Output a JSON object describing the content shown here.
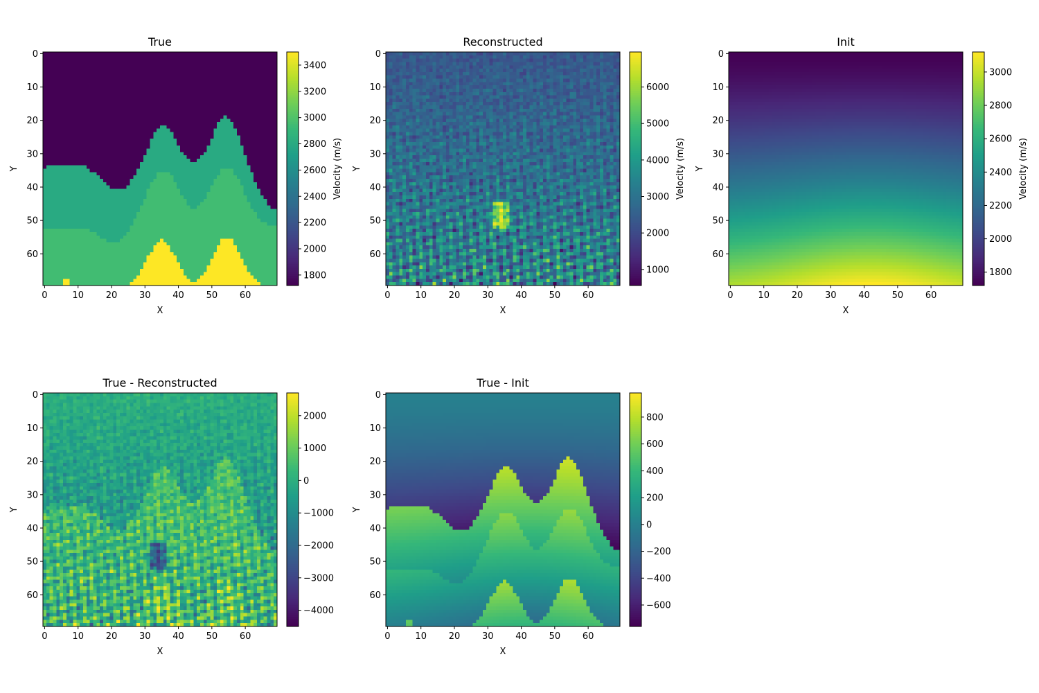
{
  "chart_data": [
    {
      "type": "heatmap",
      "title": "True",
      "xlabel": "X",
      "ylabel": "Y",
      "colorbar_label": "Velocity (m/s)",
      "xticks": [
        0,
        10,
        20,
        30,
        40,
        50,
        60
      ],
      "yticks": [
        0,
        10,
        20,
        30,
        40,
        50,
        60
      ],
      "colorbar_ticks": [
        1800,
        2000,
        2200,
        2400,
        2600,
        2800,
        3000,
        3200,
        3400
      ],
      "vmin": 1720,
      "vmax": 3500,
      "colormap": "viridis",
      "grid": "70x70",
      "field": "true_layered_model"
    },
    {
      "type": "heatmap",
      "title": "Reconstructed",
      "xlabel": "X",
      "ylabel": "Y",
      "colorbar_label": "Velocity (m/s)",
      "xticks": [
        0,
        10,
        20,
        30,
        40,
        50,
        60
      ],
      "yticks": [
        0,
        10,
        20,
        30,
        40,
        50,
        60
      ],
      "colorbar_ticks": [
        1000,
        2000,
        3000,
        4000,
        5000,
        6000
      ],
      "vmin": 560,
      "vmax": 6960,
      "colormap": "viridis",
      "grid": "70x70",
      "field": "noisy_reconstruction"
    },
    {
      "type": "heatmap",
      "title": "Init",
      "xlabel": "X",
      "ylabel": "Y",
      "colorbar_label": "Velocity (m/s)",
      "xticks": [
        0,
        10,
        20,
        30,
        40,
        50,
        60
      ],
      "yticks": [
        0,
        10,
        20,
        30,
        40,
        50,
        60
      ],
      "colorbar_ticks": [
        1800,
        2000,
        2200,
        2400,
        2600,
        2800,
        3000
      ],
      "vmin": 1720,
      "vmax": 3120,
      "colormap": "viridis",
      "grid": "70x70",
      "field": "smooth_initial_model"
    },
    {
      "type": "heatmap",
      "title": "True - Reconstructed",
      "xlabel": "X",
      "ylabel": "Y",
      "colorbar_label": "",
      "xticks": [
        0,
        10,
        20,
        30,
        40,
        50,
        60
      ],
      "yticks": [
        0,
        10,
        20,
        30,
        40,
        50,
        60
      ],
      "colorbar_ticks": [
        2000,
        1000,
        0,
        -1000,
        -2000,
        -3000,
        -4000
      ],
      "colorbar_tick_labels": [
        "2000",
        "1000",
        "0",
        "−1000",
        "−2000",
        "−3000",
        "−4000"
      ],
      "vmin": -4500,
      "vmax": 2700,
      "colormap": "viridis",
      "grid": "70x70",
      "field": "difference_true_reconstructed"
    },
    {
      "type": "heatmap",
      "title": "True - Init",
      "xlabel": "X",
      "ylabel": "Y",
      "colorbar_label": "",
      "xticks": [
        0,
        10,
        20,
        30,
        40,
        50,
        60
      ],
      "yticks": [
        0,
        10,
        20,
        30,
        40,
        50,
        60
      ],
      "colorbar_ticks": [
        800,
        600,
        400,
        200,
        0,
        -200,
        -400,
        -600
      ],
      "colorbar_tick_labels": [
        "800",
        "600",
        "400",
        "200",
        "0",
        "−200",
        "−400",
        "−600"
      ],
      "vmin": -760,
      "vmax": 980,
      "colormap": "viridis",
      "grid": "70x70",
      "field": "difference_true_init"
    }
  ]
}
